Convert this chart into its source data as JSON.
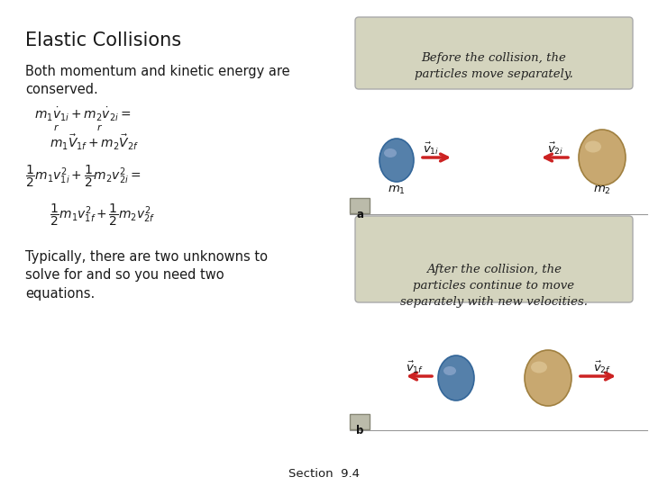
{
  "title": "Elastic Collisions",
  "bg_color": "#ffffff",
  "text_color": "#1a1a1a",
  "red_color": "#cc2222",
  "blue_ball_color": "#5580aa",
  "tan_ball_color": "#c8a870",
  "box_bg_color": "#d4d4be",
  "box_edge_color": "#aaaaaa",
  "section_text": "Section  9.4",
  "subtitle": "Both momentum and kinetic energy are\nconserved.",
  "typically_text": "Typically, there are two unknowns to\nsolve for and so you need two\nequations.",
  "box1_text": "Before the collision, the\nparticles move separately.",
  "box2_text": "After the collision, the\nparticles continue to move\nseparately with new velocities."
}
